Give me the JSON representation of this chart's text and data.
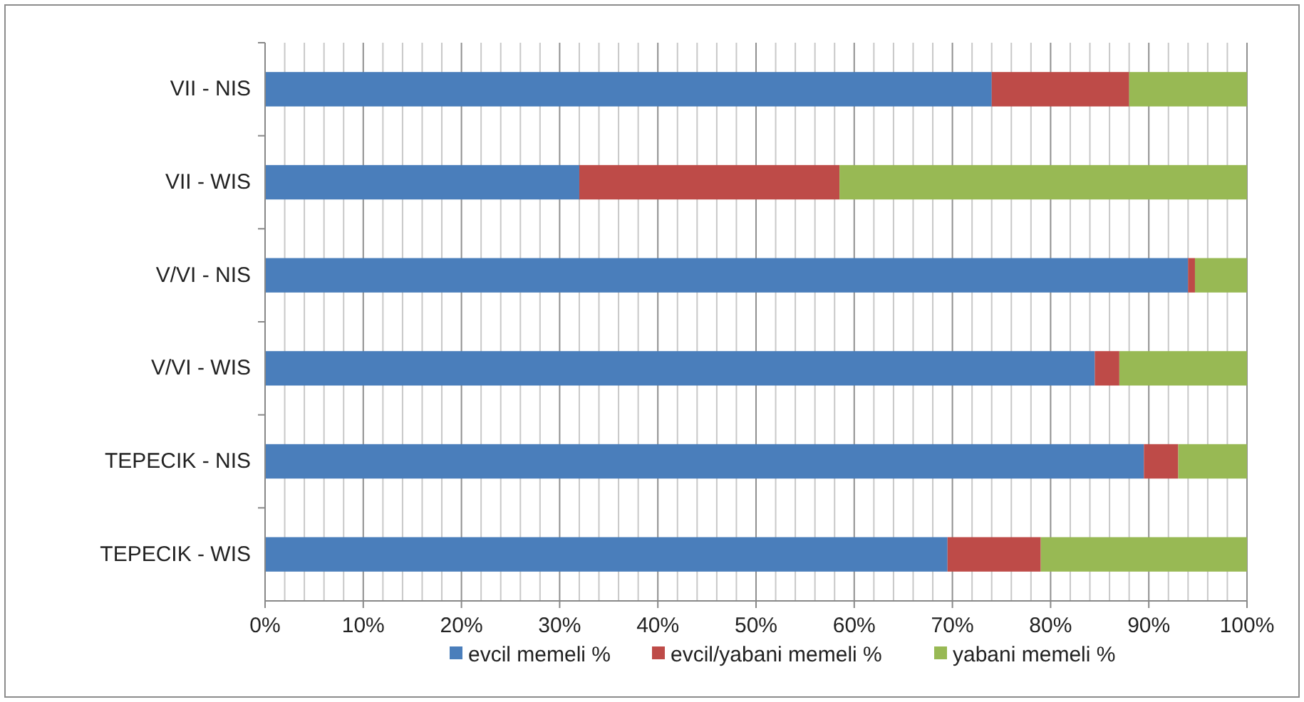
{
  "chart_data": {
    "type": "bar",
    "orientation": "horizontal",
    "stacked": true,
    "categories": [
      "VII - NIS",
      "VII - WIS",
      "V/VI - NIS",
      "V/VI - WIS",
      "TEPECIK - NIS",
      "TEPECIK - WIS"
    ],
    "series": [
      {
        "name": "evcil memeli %",
        "color": "#4a7ebb",
        "values": [
          74,
          32,
          94,
          84.5,
          89.5,
          69.5
        ]
      },
      {
        "name": "evcil/yabani memeli %",
        "color": "#be4b48",
        "values": [
          14,
          26.5,
          0.7,
          2.5,
          3.5,
          9.5
        ]
      },
      {
        "name": "yabani memeli %",
        "color": "#98b954",
        "values": [
          12,
          41.5,
          5.3,
          13,
          7,
          21
        ]
      }
    ],
    "xlim": [
      0,
      100
    ],
    "xticks": [
      {
        "value": 0,
        "label": "0%"
      },
      {
        "value": 2,
        "label": null
      },
      {
        "value": 4,
        "label": null
      },
      {
        "value": 6,
        "label": null
      },
      {
        "value": 8,
        "label": null
      },
      {
        "value": 10,
        "label": "10%"
      },
      {
        "value": 12,
        "label": null
      },
      {
        "value": 14,
        "label": null
      },
      {
        "value": 16,
        "label": null
      },
      {
        "value": 18,
        "label": null
      },
      {
        "value": 20,
        "label": "20%"
      },
      {
        "value": 22,
        "label": null
      },
      {
        "value": 24,
        "label": null
      },
      {
        "value": 26,
        "label": null
      },
      {
        "value": 28,
        "label": null
      },
      {
        "value": 30,
        "label": "30%"
      },
      {
        "value": 32,
        "label": null
      },
      {
        "value": 34,
        "label": null
      },
      {
        "value": 36,
        "label": null
      },
      {
        "value": 38,
        "label": null
      },
      {
        "value": 40,
        "label": "40%"
      },
      {
        "value": 42,
        "label": null
      },
      {
        "value": 44,
        "label": null
      },
      {
        "value": 46,
        "label": null
      },
      {
        "value": 48,
        "label": null
      },
      {
        "value": 50,
        "label": "50%"
      },
      {
        "value": 52,
        "label": null
      },
      {
        "value": 54,
        "label": null
      },
      {
        "value": 56,
        "label": null
      },
      {
        "value": 58,
        "label": null
      },
      {
        "value": 60,
        "label": "60%"
      },
      {
        "value": 62,
        "label": null
      },
      {
        "value": 64,
        "label": null
      },
      {
        "value": 66,
        "label": null
      },
      {
        "value": 68,
        "label": null
      },
      {
        "value": 70,
        "label": "70%"
      },
      {
        "value": 72,
        "label": null
      },
      {
        "value": 74,
        "label": null
      },
      {
        "value": 76,
        "label": null
      },
      {
        "value": 78,
        "label": null
      },
      {
        "value": 80,
        "label": "80%"
      },
      {
        "value": 82,
        "label": null
      },
      {
        "value": 84,
        "label": null
      },
      {
        "value": 86,
        "label": null
      },
      {
        "value": 88,
        "label": null
      },
      {
        "value": 90,
        "label": "90%"
      },
      {
        "value": 92,
        "label": null
      },
      {
        "value": 94,
        "label": null
      },
      {
        "value": 96,
        "label": null
      },
      {
        "value": 98,
        "label": null
      },
      {
        "value": 100,
        "label": "100%"
      }
    ],
    "grid": "x",
    "legend": "bottom"
  }
}
